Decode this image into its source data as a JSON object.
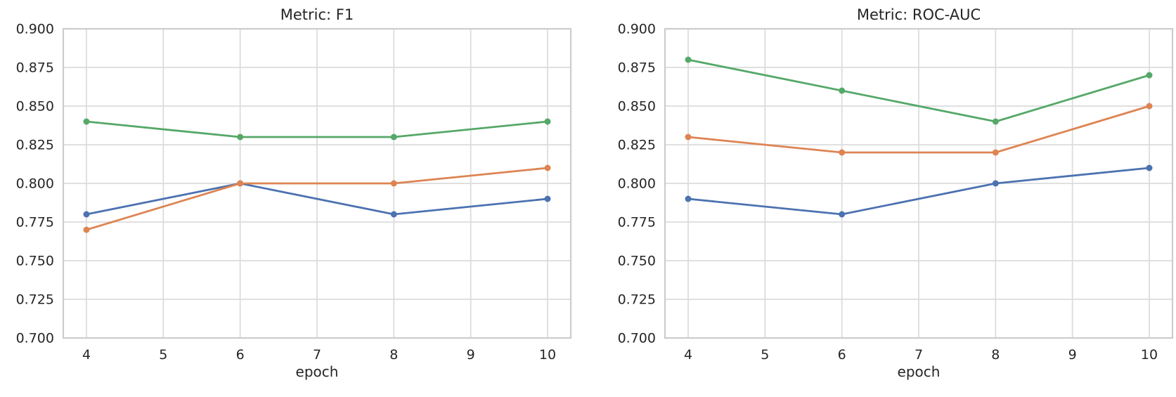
{
  "styles": {
    "background": "#ffffff",
    "grid_color": "#dcdcdc",
    "spine_color": "#cccccc",
    "text_color": "#262626"
  },
  "chart_data": [
    {
      "type": "line",
      "title": "Metric: F1",
      "xlabel": "epoch",
      "ylabel": "",
      "x": [
        4,
        6,
        8,
        10
      ],
      "xtick_labels": [
        "4",
        "5",
        "6",
        "7",
        "8",
        "9",
        "10"
      ],
      "xticks": [
        4,
        5,
        6,
        7,
        8,
        9,
        10
      ],
      "ytick_labels": [
        "0.700",
        "0.725",
        "0.750",
        "0.775",
        "0.800",
        "0.825",
        "0.850",
        "0.875",
        "0.900"
      ],
      "yticks": [
        0.7,
        0.725,
        0.75,
        0.775,
        0.8,
        0.825,
        0.85,
        0.875,
        0.9
      ],
      "ylim": [
        0.7,
        0.9
      ],
      "xlim": [
        3.7,
        10.3
      ],
      "grid": true,
      "legend": "none",
      "series": [
        {
          "name": "blue-series",
          "color": "#4C72B0",
          "values": [
            0.78,
            0.8,
            0.78,
            0.79
          ]
        },
        {
          "name": "orange-series",
          "color": "#DD8452",
          "values": [
            0.77,
            0.8,
            0.8,
            0.81
          ]
        },
        {
          "name": "green-series",
          "color": "#55A868",
          "values": [
            0.84,
            0.83,
            0.83,
            0.84
          ]
        }
      ]
    },
    {
      "type": "line",
      "title": "Metric: ROC-AUC",
      "xlabel": "epoch",
      "ylabel": "",
      "x": [
        4,
        6,
        8,
        10
      ],
      "xtick_labels": [
        "4",
        "5",
        "6",
        "7",
        "8",
        "9",
        "10"
      ],
      "xticks": [
        4,
        5,
        6,
        7,
        8,
        9,
        10
      ],
      "ytick_labels": [
        "0.700",
        "0.725",
        "0.750",
        "0.775",
        "0.800",
        "0.825",
        "0.850",
        "0.875",
        "0.900"
      ],
      "yticks": [
        0.7,
        0.725,
        0.75,
        0.775,
        0.8,
        0.825,
        0.85,
        0.875,
        0.9
      ],
      "ylim": [
        0.7,
        0.9
      ],
      "xlim": [
        3.7,
        10.3
      ],
      "grid": true,
      "legend": "none",
      "series": [
        {
          "name": "blue-series",
          "color": "#4C72B0",
          "values": [
            0.79,
            0.78,
            0.8,
            0.81
          ]
        },
        {
          "name": "orange-series",
          "color": "#DD8452",
          "values": [
            0.83,
            0.82,
            0.82,
            0.85
          ]
        },
        {
          "name": "green-series",
          "color": "#55A868",
          "values": [
            0.88,
            0.86,
            0.84,
            0.87
          ]
        }
      ]
    }
  ]
}
